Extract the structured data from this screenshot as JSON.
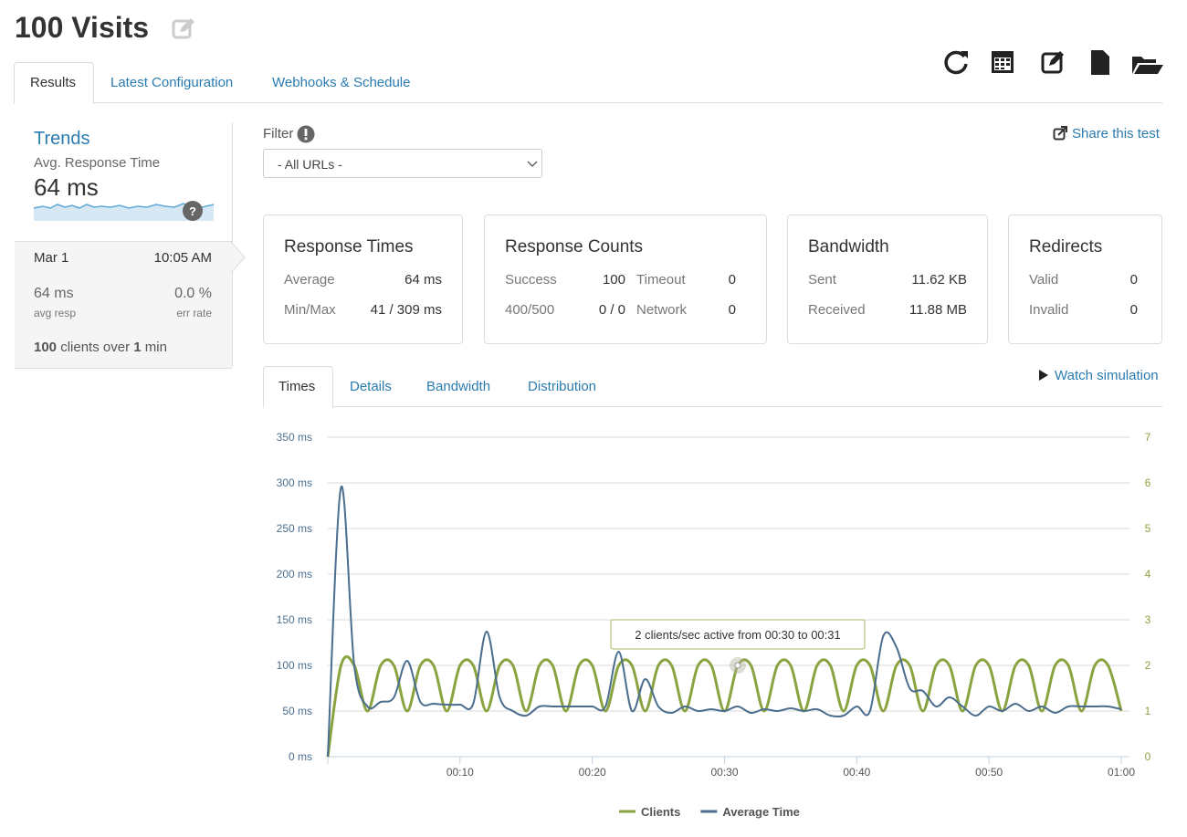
{
  "header": {
    "title": "100 Visits"
  },
  "tabs": [
    "Results",
    "Latest Configuration",
    "Webhooks & Schedule"
  ],
  "sidebar": {
    "title": "Trends",
    "metric_label": "Avg. Response Time",
    "metric_value": "64 ms",
    "date": "Mar 1",
    "time": "10:05 AM",
    "avg_resp": "64 ms",
    "avg_resp_label": "avg resp",
    "err_rate": "0.0 %",
    "err_rate_label": "err rate",
    "clients": "100",
    "clients_text": "clients over",
    "duration": "1",
    "duration_unit": "min"
  },
  "filter": {
    "label": "Filter",
    "selected": "- All URLs -"
  },
  "share": "Share this test",
  "cards": [
    {
      "title": "Response Times",
      "rows": [
        [
          "Average",
          "64 ms"
        ],
        [
          "Min/Max",
          "41 / 309 ms"
        ]
      ]
    },
    {
      "title": "Response Counts",
      "rows": [
        [
          "Success",
          "100",
          "Timeout",
          "0"
        ],
        [
          "400/500",
          "0 / 0",
          "Network",
          "0"
        ]
      ]
    },
    {
      "title": "Bandwidth",
      "rows": [
        [
          "Sent",
          "11.62 KB"
        ],
        [
          "Received",
          "11.88 MB"
        ]
      ]
    },
    {
      "title": "Redirects",
      "rows": [
        [
          "Valid",
          "0"
        ],
        [
          "Invalid",
          "0"
        ]
      ]
    }
  ],
  "chart_tabs": [
    "Times",
    "Details",
    "Bandwidth",
    "Distribution"
  ],
  "watch": "Watch simulation",
  "chart_data": {
    "type": "line",
    "x": [
      0,
      1,
      2,
      3,
      4,
      5,
      6,
      7,
      8,
      9,
      10,
      11,
      12,
      13,
      14,
      15,
      16,
      17,
      18,
      19,
      20,
      21,
      22,
      23,
      24,
      25,
      26,
      27,
      28,
      29,
      30,
      31,
      32,
      33,
      34,
      35,
      36,
      37,
      38,
      39,
      40,
      41,
      42,
      43,
      44,
      45,
      46,
      47,
      48,
      49,
      50,
      51,
      52,
      53,
      54,
      55,
      56,
      57,
      58,
      59,
      60
    ],
    "xlim": [
      0,
      60
    ],
    "xticks": [
      {
        "value": 10,
        "label": "00:10"
      },
      {
        "value": 20,
        "label": "00:20"
      },
      {
        "value": 30,
        "label": "00:30"
      },
      {
        "value": 40,
        "label": "00:40"
      },
      {
        "value": 50,
        "label": "00:50"
      },
      {
        "value": 60,
        "label": "01:00"
      }
    ],
    "ylim": [
      0,
      350
    ],
    "yticks": [
      {
        "value": 0,
        "label": "0 ms"
      },
      {
        "value": 50,
        "label": "50 ms"
      },
      {
        "value": 100,
        "label": "100 ms"
      },
      {
        "value": 150,
        "label": "150 ms"
      },
      {
        "value": 200,
        "label": "200 ms"
      },
      {
        "value": 250,
        "label": "250 ms"
      },
      {
        "value": 300,
        "label": "300 ms"
      },
      {
        "value": 350,
        "label": "350 ms"
      }
    ],
    "y2lim": [
      0,
      7
    ],
    "y2ticks": [
      0,
      1,
      2,
      3,
      4,
      5,
      6,
      7
    ],
    "grid": true,
    "legend": "bottom",
    "tooltip": "2 clients/sec active from 00:30 to 00:31",
    "series": [
      {
        "name": "Clients",
        "color": "#8aa341",
        "axis": "y2",
        "values": [
          0,
          2,
          2,
          1,
          2,
          2,
          1,
          2,
          2,
          1,
          2,
          2,
          1,
          2,
          2,
          1,
          2,
          2,
          1,
          2,
          2,
          1,
          2,
          2,
          1,
          2,
          2,
          1,
          2,
          2,
          1,
          2,
          2,
          1,
          2,
          2,
          1,
          2,
          2,
          1,
          2,
          2,
          1,
          2,
          2,
          1,
          2,
          2,
          1,
          2,
          2,
          1,
          2,
          2,
          1,
          2,
          2,
          1,
          2,
          2,
          1
        ]
      },
      {
        "name": "Average Time",
        "color": "#4b6e8e",
        "axis": "y",
        "values": [
          0,
          295,
          100,
          55,
          60,
          65,
          105,
          60,
          58,
          57,
          57,
          58,
          137,
          65,
          50,
          45,
          55,
          55,
          55,
          55,
          55,
          55,
          115,
          50,
          85,
          55,
          48,
          55,
          50,
          52,
          50,
          55,
          48,
          52,
          50,
          53,
          50,
          52,
          45,
          45,
          55,
          50,
          132,
          120,
          75,
          72,
          55,
          65,
          55,
          45,
          55,
          50,
          58,
          50,
          55,
          48,
          55,
          55,
          55,
          55,
          52
        ]
      }
    ]
  }
}
